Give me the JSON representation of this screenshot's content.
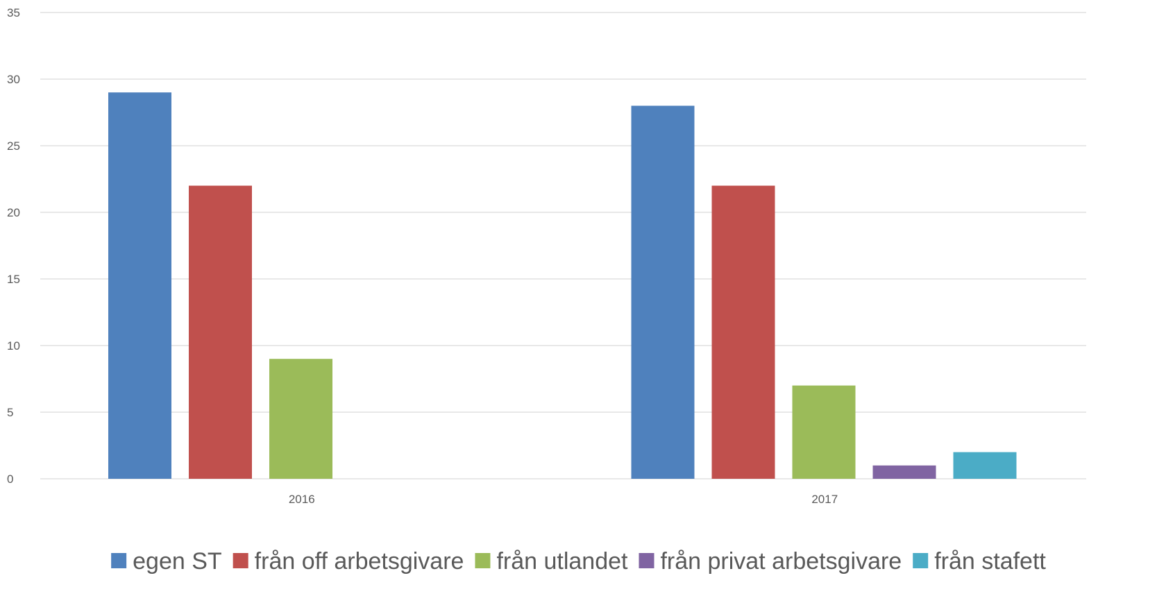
{
  "chart_data": {
    "type": "bar",
    "title": "",
    "xlabel": "",
    "ylabel": "",
    "categories": [
      "2016",
      "2017"
    ],
    "ylim": [
      0,
      35
    ],
    "yticks": [
      0,
      5,
      10,
      15,
      20,
      25,
      30,
      35
    ],
    "grid": true,
    "legend_position": "bottom",
    "series": [
      {
        "name": "egen ST",
        "values": [
          29,
          28
        ],
        "color": "#4F81BD"
      },
      {
        "name": "från off arbetsgivare",
        "values": [
          22,
          22
        ],
        "color": "#C0504D"
      },
      {
        "name": "från utlandet",
        "values": [
          9,
          7
        ],
        "color": "#9BBB59"
      },
      {
        "name": "från privat arbetsgivare",
        "values": [
          0,
          1
        ],
        "color": "#8064A2"
      },
      {
        "name": "från stafett",
        "values": [
          0,
          2
        ],
        "color": "#4BACC6"
      }
    ]
  }
}
